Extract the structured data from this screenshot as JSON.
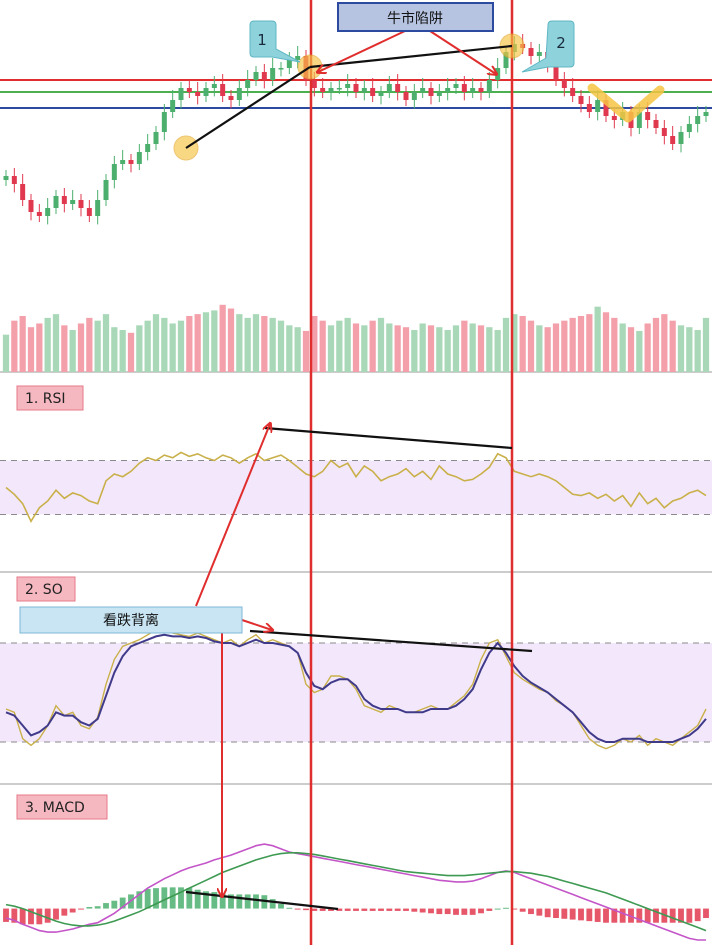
{
  "chart_data": [
    {
      "type": "candlestick",
      "panel": "price",
      "annotations": {
        "box_label": "牛市陷阱",
        "callout_1": "1",
        "callout_2": "2"
      },
      "horizontal_levels": [
        {
          "name": "resistance",
          "color": "#e02d2d",
          "value": 60
        },
        {
          "name": "mid",
          "color": "#4caf50",
          "value": 57
        },
        {
          "name": "support",
          "color": "#2b4aa0",
          "value": 53
        }
      ],
      "ylim": [
        0,
        80
      ],
      "closes": [
        36,
        34,
        30,
        27,
        26,
        28,
        31,
        29,
        30,
        28,
        26,
        30,
        35,
        39,
        40,
        39,
        42,
        44,
        47,
        52,
        55,
        58,
        57,
        56,
        58,
        59,
        56,
        55,
        58,
        60,
        62,
        60,
        63,
        63,
        65,
        66,
        60,
        58,
        57,
        58,
        58,
        59,
        57,
        58,
        56,
        57,
        59,
        57,
        55,
        57,
        58,
        56,
        57,
        58,
        59,
        57,
        58,
        57,
        60,
        63,
        67,
        69,
        68,
        66,
        67,
        64,
        60,
        58,
        56,
        54,
        52,
        55,
        51,
        50,
        52,
        48,
        52,
        50,
        48,
        46,
        44,
        47,
        49,
        51,
        52
      ]
    },
    {
      "type": "bar",
      "panel": "volume",
      "values": [
        40,
        55,
        60,
        48,
        52,
        58,
        62,
        50,
        45,
        52,
        58,
        55,
        62,
        48,
        45,
        42,
        50,
        55,
        62,
        58,
        52,
        55,
        60,
        62,
        64,
        66,
        72,
        68,
        62,
        58,
        62,
        60,
        58,
        55,
        50,
        48,
        44,
        60,
        55,
        50,
        55,
        58,
        52,
        50,
        55,
        58,
        52,
        50,
        48,
        45,
        52,
        50,
        48,
        45,
        50,
        55,
        52,
        50,
        48,
        45,
        58,
        62,
        60,
        55,
        50,
        48,
        52,
        55,
        58,
        60,
        62,
        70,
        64,
        58,
        52,
        48,
        44,
        52,
        58,
        62,
        55,
        50,
        48,
        45,
        58
      ],
      "colors_up_down": [
        "#f4a0ab",
        "#a8d8b8"
      ]
    },
    {
      "type": "line",
      "panel": "rsi",
      "label": "1. RSI",
      "ylim": [
        0,
        100
      ],
      "bands": [
        30,
        70
      ],
      "series": [
        {
          "color": "#c9b04a",
          "values": [
            50,
            45,
            38,
            25,
            35,
            40,
            48,
            42,
            46,
            44,
            40,
            38,
            55,
            60,
            58,
            62,
            68,
            72,
            70,
            74,
            72,
            76,
            73,
            75,
            72,
            70,
            74,
            72,
            68,
            72,
            75,
            70,
            72,
            74,
            70,
            65,
            60,
            58,
            62,
            70,
            65,
            68,
            58,
            66,
            62,
            55,
            58,
            60,
            64,
            58,
            62,
            56,
            66,
            60,
            58,
            55,
            56,
            60,
            65,
            75,
            72,
            62,
            60,
            58,
            60,
            58,
            55,
            50,
            45,
            44,
            46,
            42,
            45,
            40,
            44,
            36,
            46,
            38,
            42,
            35,
            40,
            42,
            46,
            48,
            44
          ]
        }
      ]
    },
    {
      "type": "line",
      "panel": "so",
      "label": "2. SO",
      "annotation": "看跌背离",
      "ylim": [
        0,
        100
      ],
      "bands": [
        20,
        80
      ],
      "series": [
        {
          "color": "#c9b04a",
          "values": [
            40,
            38,
            22,
            18,
            22,
            30,
            42,
            36,
            38,
            30,
            28,
            35,
            55,
            70,
            78,
            80,
            82,
            85,
            88,
            88,
            86,
            85,
            84,
            86,
            84,
            82,
            80,
            82,
            78,
            82,
            85,
            80,
            82,
            80,
            78,
            74,
            55,
            50,
            52,
            60,
            60,
            58,
            52,
            42,
            40,
            38,
            42,
            40,
            38,
            38,
            40,
            42,
            40,
            40,
            44,
            48,
            55,
            70,
            80,
            82,
            72,
            62,
            58,
            55,
            52,
            50,
            45,
            42,
            38,
            30,
            22,
            18,
            16,
            18,
            22,
            20,
            24,
            18,
            22,
            20,
            18,
            22,
            26,
            30,
            40
          ]
        },
        {
          "color": "#403a8a",
          "values": [
            38,
            36,
            30,
            24,
            26,
            30,
            38,
            36,
            36,
            32,
            30,
            34,
            48,
            62,
            72,
            78,
            80,
            82,
            84,
            85,
            84,
            84,
            83,
            84,
            83,
            81,
            80,
            80,
            78,
            80,
            82,
            80,
            80,
            79,
            78,
            74,
            62,
            54,
            52,
            56,
            58,
            58,
            54,
            46,
            42,
            40,
            40,
            40,
            38,
            38,
            38,
            40,
            40,
            40,
            42,
            46,
            52,
            64,
            74,
            80,
            74,
            66,
            60,
            56,
            53,
            50,
            46,
            42,
            38,
            32,
            26,
            22,
            20,
            20,
            22,
            22,
            22,
            20,
            20,
            20,
            20,
            22,
            24,
            28,
            34
          ]
        }
      ]
    },
    {
      "type": "line",
      "panel": "macd",
      "label": "3. MACD",
      "ylim": [
        -4,
        10
      ],
      "series": [
        {
          "color": "#c455c8",
          "values": [
            -1.2,
            -1.5,
            -2.0,
            -2.4,
            -2.8,
            -3.0,
            -3.0,
            -2.8,
            -2.6,
            -2.3,
            -2.0,
            -1.8,
            -1.2,
            -0.6,
            0.2,
            1.0,
            1.8,
            2.6,
            3.2,
            3.8,
            4.3,
            4.8,
            5.2,
            5.5,
            5.8,
            6.2,
            6.5,
            6.8,
            7.2,
            7.6,
            8.0,
            8.2,
            8.0,
            7.6,
            7.2,
            7.0,
            6.8,
            6.6,
            6.4,
            6.2,
            6.0,
            5.8,
            5.6,
            5.4,
            5.2,
            5.0,
            4.8,
            4.6,
            4.4,
            4.2,
            4.0,
            3.8,
            3.6,
            3.5,
            3.4,
            3.4,
            3.5,
            3.8,
            4.2,
            4.6,
            4.8,
            4.6,
            4.2,
            3.8,
            3.4,
            3.0,
            2.6,
            2.2,
            1.8,
            1.4,
            1.0,
            0.6,
            0.2,
            -0.2,
            -0.6,
            -1.0,
            -1.4,
            -1.8,
            -2.2,
            -2.6,
            -3.0,
            -3.4,
            -3.8,
            -4.0,
            -4.0
          ]
        },
        {
          "color": "#3e9a52",
          "values": [
            0.5,
            0.3,
            0.0,
            -0.4,
            -0.8,
            -1.2,
            -1.6,
            -1.9,
            -2.1,
            -2.2,
            -2.2,
            -2.1,
            -1.9,
            -1.6,
            -1.2,
            -0.8,
            -0.4,
            0.1,
            0.6,
            1.1,
            1.6,
            2.1,
            2.6,
            3.1,
            3.6,
            4.1,
            4.6,
            5.0,
            5.4,
            5.8,
            6.2,
            6.5,
            6.8,
            7.0,
            7.1,
            7.1,
            7.0,
            6.9,
            6.7,
            6.5,
            6.3,
            6.1,
            5.9,
            5.7,
            5.5,
            5.3,
            5.1,
            4.9,
            4.7,
            4.6,
            4.5,
            4.4,
            4.3,
            4.2,
            4.2,
            4.2,
            4.3,
            4.4,
            4.5,
            4.6,
            4.7,
            4.7,
            4.6,
            4.5,
            4.3,
            4.1,
            3.8,
            3.5,
            3.2,
            2.9,
            2.6,
            2.3,
            2.0,
            1.6,
            1.2,
            0.8,
            0.4,
            0.0,
            -0.4,
            -0.8,
            -1.2,
            -1.6,
            -2.0,
            -2.4,
            -2.8
          ]
        }
      ],
      "histogram": [
        -1.7,
        -1.8,
        -2.0,
        -2.0,
        -2.0,
        -1.8,
        -1.4,
        -0.9,
        -0.5,
        -0.1,
        0.2,
        0.3,
        0.7,
        1.0,
        1.4,
        1.8,
        2.2,
        2.5,
        2.6,
        2.7,
        2.7,
        2.7,
        2.6,
        2.4,
        2.2,
        2.1,
        1.9,
        1.8,
        1.8,
        1.8,
        1.8,
        1.7,
        1.2,
        0.6,
        0.1,
        -0.1,
        -0.2,
        -0.3,
        -0.3,
        -0.3,
        -0.3,
        -0.3,
        -0.3,
        -0.3,
        -0.3,
        -0.3,
        -0.3,
        -0.3,
        -0.3,
        -0.4,
        -0.5,
        -0.6,
        -0.7,
        -0.7,
        -0.8,
        -0.8,
        -0.8,
        -0.6,
        -0.3,
        0.0,
        0.1,
        -0.1,
        -0.4,
        -0.7,
        -0.9,
        -1.1,
        -1.2,
        -1.3,
        -1.4,
        -1.5,
        -1.6,
        -1.7,
        -1.8,
        -1.8,
        -1.8,
        -1.8,
        -1.8,
        -1.8,
        -1.8,
        -1.8,
        -1.8,
        -1.8,
        -1.8,
        -1.6,
        -1.2
      ]
    }
  ],
  "colors": {
    "up": "#4caf6e",
    "down": "#e0394f",
    "band_fill": "#f3e8fb",
    "arrow": "#e02d2d",
    "trend": "#111111",
    "callout": "#8ed3dc",
    "highlight": "#f6c443",
    "label_box": "#f5b8c0",
    "annotation_box": "#c9e5f4",
    "title_box": "#b6c4e2",
    "divider": "#9a9a9a"
  }
}
